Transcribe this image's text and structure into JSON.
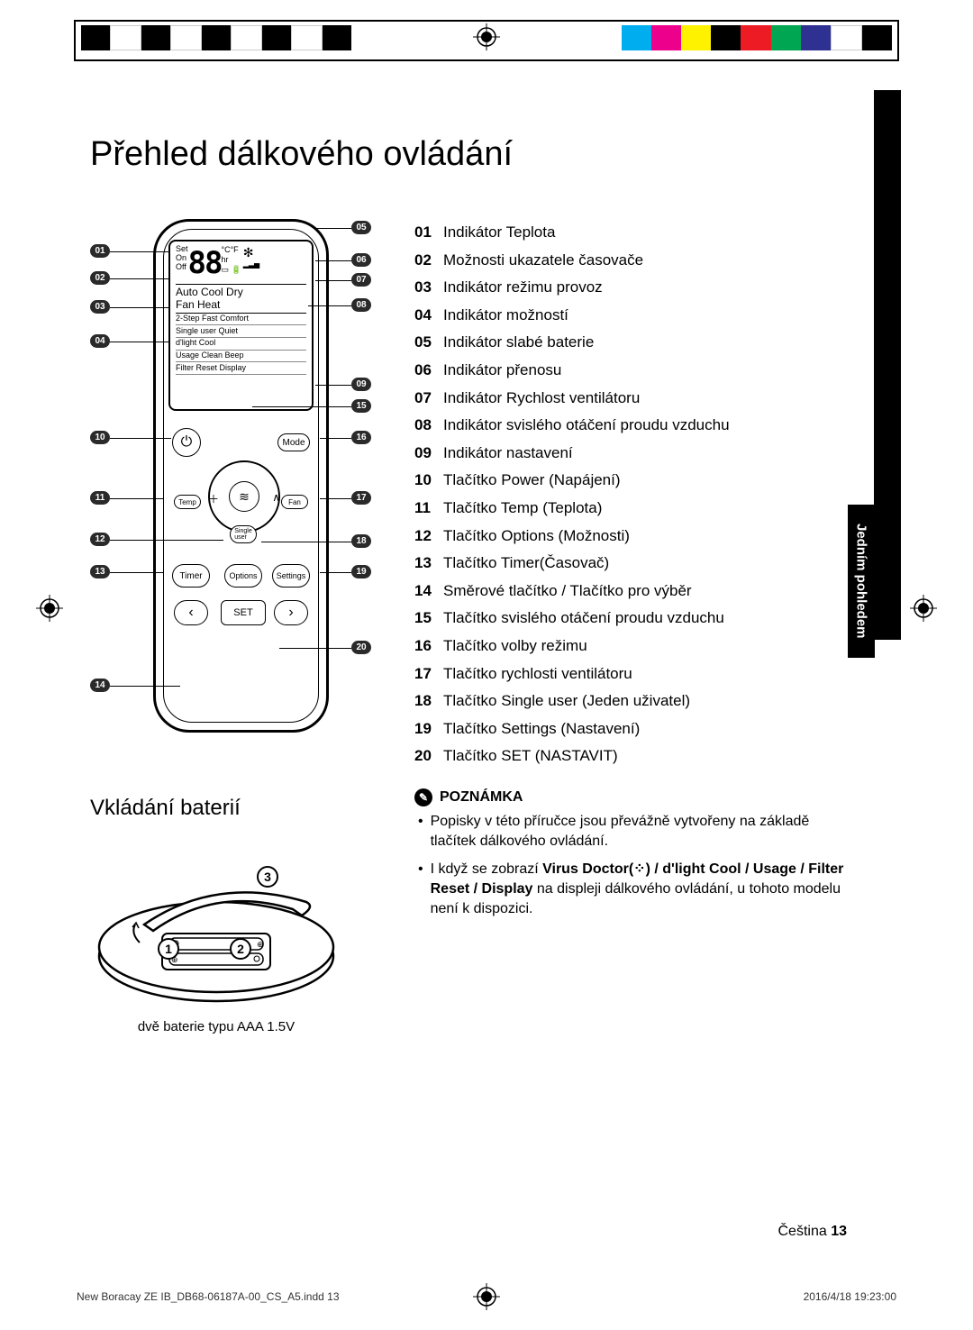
{
  "colorbar": {
    "left_colors": [
      "#000000",
      "#ffffff",
      "#000000",
      "#ffffff",
      "#000000",
      "#ffffff",
      "#000000",
      "#ffffff",
      "#000000"
    ],
    "right_colors": [
      "#00aeef",
      "#ec008c",
      "#fff200",
      "#000000",
      "#ed1c24",
      "#00a651",
      "#2e3192",
      "#ffffff",
      "#000000"
    ]
  },
  "title": "Přehled dálkového ovládání",
  "side_tab": "Jedním pohledem",
  "remote": {
    "lcd": {
      "set": "Set",
      "on": "On",
      "off": "Off",
      "digits": "88",
      "hr": "hr",
      "cf": "°C°F",
      "modes": "Auto Cool Dry\nFan   Heat",
      "opt1": "2-Step  Fast  Comfort",
      "opt2": "Single user  Quiet",
      "opt3": "d'light Cool",
      "opt4": "Usage   Clean    Beep",
      "opt5": "Filter Reset    Display"
    },
    "buttons": {
      "power": "⏻",
      "mode": "Mode",
      "temp": "Temp",
      "fan": "Fan",
      "single": "Single\nuser",
      "timer": "Timer",
      "options": "Options",
      "settings": "Settings",
      "set": "SET",
      "prev": "‹",
      "next": "›",
      "plus": "＋",
      "minus": "－",
      "up": "∧",
      "down": "∨",
      "swing": "≋"
    }
  },
  "legend": [
    {
      "n": "01",
      "t": "Indikátor Teplota"
    },
    {
      "n": "02",
      "t": "Možnosti ukazatele časovače"
    },
    {
      "n": "03",
      "t": "Indikátor režimu provoz"
    },
    {
      "n": "04",
      "t": "Indikátor možností"
    },
    {
      "n": "05",
      "t": "Indikátor slabé baterie"
    },
    {
      "n": "06",
      "t": "Indikátor přenosu"
    },
    {
      "n": "07",
      "t": "Indikátor Rychlost ventilátoru"
    },
    {
      "n": "08",
      "t": "Indikátor svislého otáčení proudu vzduchu"
    },
    {
      "n": "09",
      "t": "Indikátor nastavení"
    },
    {
      "n": "10",
      "t": "Tlačítko Power (Napájení)"
    },
    {
      "n": "11",
      "t": "Tlačítko Temp (Teplota)"
    },
    {
      "n": "12",
      "t": "Tlačítko Options (Možnosti)"
    },
    {
      "n": "13",
      "t": "Tlačítko Timer(Časovač)"
    },
    {
      "n": "14",
      "t": "Směrové tlačítko / Tlačítko pro výběr"
    },
    {
      "n": "15",
      "t": "Tlačítko svislého otáčení proudu vzduchu"
    },
    {
      "n": "16",
      "t": "Tlačítko volby režimu"
    },
    {
      "n": "17",
      "t": "Tlačítko rychlosti ventilátoru"
    },
    {
      "n": "18",
      "t": "Tlačítko Single user (Jeden uživatel)"
    },
    {
      "n": "19",
      "t": "Tlačítko Settings (Nastavení)"
    },
    {
      "n": "20",
      "t": "Tlačítko SET (NASTAVIT)"
    }
  ],
  "note": {
    "head": "POZNÁMKA",
    "items": [
      {
        "pre": "Popisky v této příručce jsou převážně vytvořeny na základě tlačítek dálkového ovládání."
      },
      {
        "pre": "I když se zobrazí ",
        "bold": "Virus Doctor(⁘) / d'light Cool / Usage / Filter Reset / Display",
        "post": " na displeji dálkového ovládání, u tohoto modelu není k dispozici."
      }
    ]
  },
  "battery": {
    "title": "Vkládání baterií",
    "caption": "dvě baterie typu AAA 1.5V",
    "steps": [
      "1",
      "2",
      "3"
    ]
  },
  "footer": {
    "lang": "Čeština",
    "page": "13",
    "file": "New Boracay ZE IB_DB68-06187A-00_CS_A5.indd   13",
    "timestamp": "2016/4/18   19:23:00"
  }
}
